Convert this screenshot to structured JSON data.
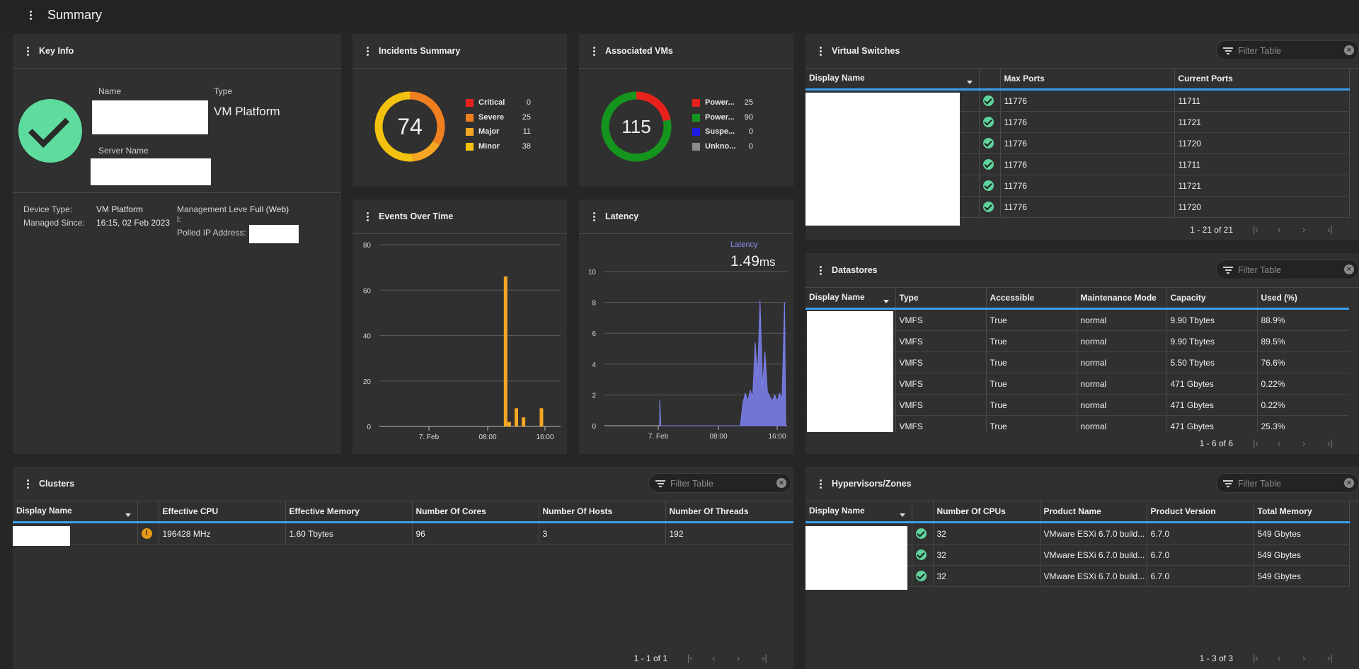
{
  "page": {
    "title": "Summary"
  },
  "key_info": {
    "title": "Key Info",
    "name_label": "Name",
    "type_label": "Type",
    "type_value": "VM Platform",
    "server_name_label": "Server Name",
    "device_type_label": "Device Type:",
    "device_type_value": "VM Platform",
    "managed_since_label": "Managed Since:",
    "managed_since_value": "16:15, 02 Feb 2023",
    "management_level_label": "Management Level:",
    "management_level_value": "Full (Web)",
    "polled_ip_label": "Polled IP Address:"
  },
  "incidents": {
    "title": "Incidents Summary",
    "total": "74",
    "items": [
      {
        "label": "Critical",
        "count": "0",
        "color": "#e8211c"
      },
      {
        "label": "Severe",
        "count": "25",
        "color": "#f07f1f"
      },
      {
        "label": "Major",
        "count": "11",
        "color": "#f5a623"
      },
      {
        "label": "Minor",
        "count": "38",
        "color": "#f2c20f"
      }
    ]
  },
  "vms": {
    "title": "Associated VMs",
    "total": "115",
    "items": [
      {
        "label": "Power...",
        "count": "25",
        "color": "#e8211c"
      },
      {
        "label": "Power...",
        "count": "90",
        "color": "#14951d"
      },
      {
        "label": "Suspe...",
        "count": "0",
        "color": "#1d1de0"
      },
      {
        "label": "Unkno...",
        "count": "0",
        "color": "#8c8c8c"
      }
    ]
  },
  "events_chart_title": "Events Over Time",
  "latency_chart_title": "Latency",
  "latency_readout": {
    "label": "Latency",
    "value": "1.49",
    "unit": "ms"
  },
  "chart_data": [
    {
      "type": "bar",
      "title": "Events Over Time",
      "ylim": [
        0,
        80
      ],
      "yticks": [
        "0",
        "20",
        "40",
        "60",
        "80"
      ],
      "xtick_labels": [
        "7. Feb",
        "08:00",
        "16:00"
      ],
      "grid": true,
      "series": [
        {
          "color": "#f5a623",
          "points": [
            {
              "x": "10:30",
              "y": 66
            },
            {
              "x": "11:00",
              "y": 2
            },
            {
              "x": "12:00",
              "y": 8
            },
            {
              "x": "13:00",
              "y": 4
            },
            {
              "x": "15:30",
              "y": 8
            }
          ]
        }
      ]
    },
    {
      "type": "area",
      "title": "Latency",
      "ylim": [
        0,
        10
      ],
      "yticks": [
        "0",
        "2",
        "4",
        "6",
        "8",
        "10"
      ],
      "xtick_labels": [
        "7. Feb",
        "08:00",
        "16:00"
      ],
      "grid": true,
      "series": [
        {
          "color": "#7c80f0",
          "points": [
            {
              "x": "00:00",
              "y": 1.7
            },
            {
              "x": "00:10",
              "y": 0
            },
            {
              "x": "11:00",
              "y": 0
            },
            {
              "x": "11:20",
              "y": 1.5
            },
            {
              "x": "11:40",
              "y": 2.1
            },
            {
              "x": "12:00",
              "y": 1.6
            },
            {
              "x": "12:20",
              "y": 2.3
            },
            {
              "x": "12:40",
              "y": 1.8
            },
            {
              "x": "13:00",
              "y": 5.4
            },
            {
              "x": "13:20",
              "y": 3.2
            },
            {
              "x": "13:40",
              "y": 8.1
            },
            {
              "x": "14:00",
              "y": 2.5
            },
            {
              "x": "14:20",
              "y": 4.8
            },
            {
              "x": "14:40",
              "y": 2.2
            },
            {
              "x": "15:00",
              "y": 1.9
            },
            {
              "x": "15:20",
              "y": 1.6
            },
            {
              "x": "15:40",
              "y": 2.0
            },
            {
              "x": "16:00",
              "y": 1.6
            },
            {
              "x": "16:20",
              "y": 2.1
            },
            {
              "x": "16:40",
              "y": 1.7
            },
            {
              "x": "17:00",
              "y": 8.0
            },
            {
              "x": "17:10",
              "y": 0
            }
          ]
        }
      ]
    }
  ],
  "virtual_switches": {
    "title": "Virtual Switches",
    "filter_placeholder": "Filter Table",
    "columns": [
      "Display Name",
      "",
      "Max Ports",
      "Current Ports"
    ],
    "rows": [
      [
        "11776",
        "11711"
      ],
      [
        "11776",
        "11721"
      ],
      [
        "11776",
        "11720"
      ],
      [
        "11776",
        "11711"
      ],
      [
        "11776",
        "11721"
      ],
      [
        "11776",
        "11720"
      ]
    ],
    "pager": "1 - 21 of 21"
  },
  "datastores": {
    "title": "Datastores",
    "filter_placeholder": "Filter Table",
    "columns": [
      "Display Name",
      "Type",
      "Accessible",
      "Maintenance Mode",
      "Capacity",
      "Used (%)"
    ],
    "rows": [
      [
        "VMFS",
        "True",
        "normal",
        "9.90 Tbytes",
        "88.9%"
      ],
      [
        "VMFS",
        "True",
        "normal",
        "9.90 Tbytes",
        "89.5%"
      ],
      [
        "VMFS",
        "True",
        "normal",
        "5.50 Tbytes",
        "76.6%"
      ],
      [
        "VMFS",
        "True",
        "normal",
        "471 Gbytes",
        "0.22%"
      ],
      [
        "VMFS",
        "True",
        "normal",
        "471 Gbytes",
        "0.22%"
      ],
      [
        "VMFS",
        "True",
        "normal",
        "471 Gbytes",
        "25.3%"
      ]
    ],
    "pager": "1 - 6 of 6"
  },
  "clusters": {
    "title": "Clusters",
    "filter_placeholder": "Filter Table",
    "columns": [
      "Display Name",
      "",
      "Effective CPU",
      "Effective Memory",
      "Number Of Cores",
      "Number Of Hosts",
      "Number Of Threads"
    ],
    "rows": [
      [
        "196428 MHz",
        "1.60 Tbytes",
        "96",
        "3",
        "192"
      ]
    ],
    "pager": "1 - 1 of 1"
  },
  "hypervisors": {
    "title": "Hypervisors/Zones",
    "filter_placeholder": "Filter Table",
    "columns": [
      "Display Name",
      "",
      "Number Of CPUs",
      "Product Name",
      "Product Version",
      "Total Memory"
    ],
    "rows": [
      [
        "32",
        "VMware ESXi 6.7.0 build...",
        "6.7.0",
        "549 Gbytes"
      ],
      [
        "32",
        "VMware ESXi 6.7.0 build...",
        "6.7.0",
        "549 Gbytes"
      ],
      [
        "32",
        "VMware ESXi 6.7.0 build...",
        "6.7.0",
        "549 Gbytes"
      ]
    ],
    "pager": "1 - 3 of 3"
  },
  "pager_icons": [
    "first-page-icon",
    "prev-page-icon",
    "next-page-icon",
    "last-page-icon"
  ]
}
